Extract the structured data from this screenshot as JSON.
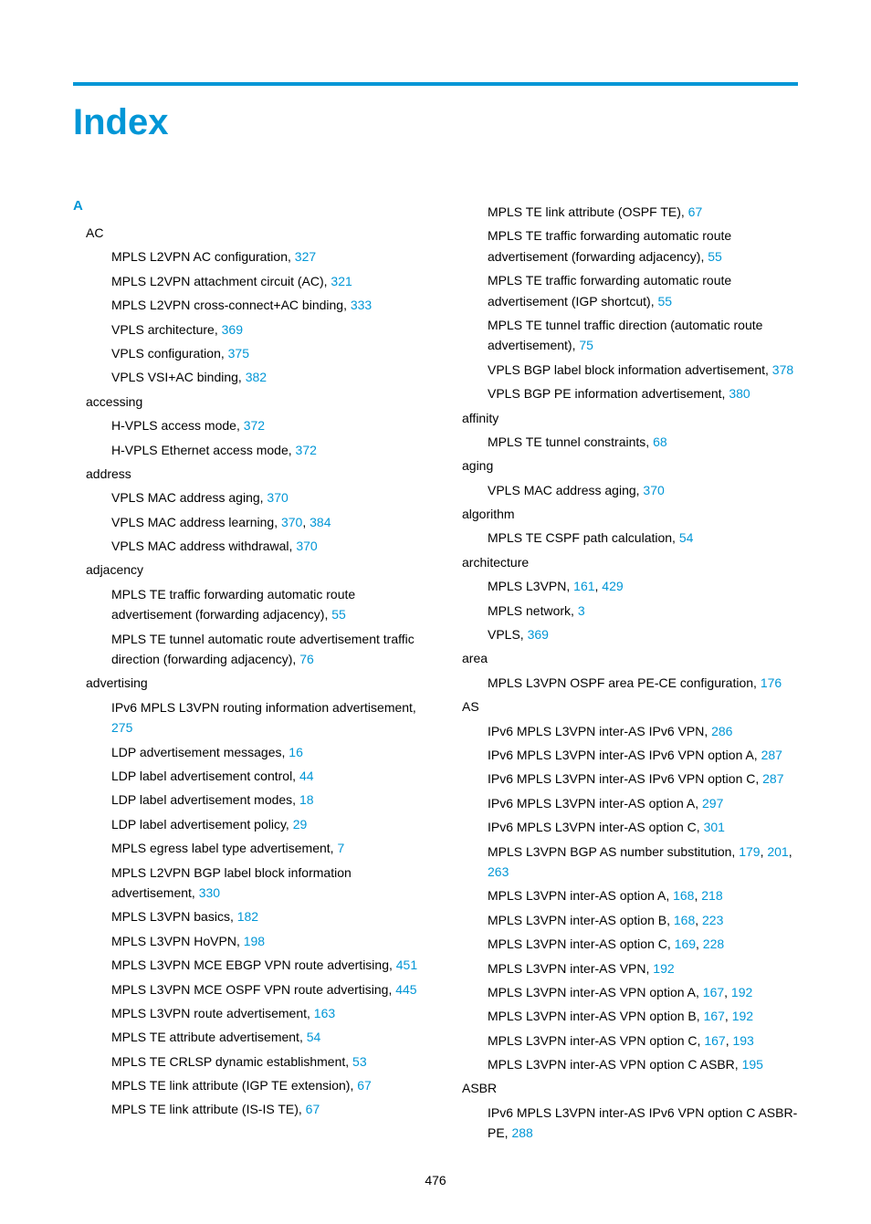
{
  "title": "Index",
  "section_letter": "A",
  "page_number": "476",
  "link_color": "#0096d6",
  "text_color": "#000000",
  "col1": [
    {
      "type": "term",
      "text": "AC"
    },
    {
      "type": "entry",
      "parts": [
        {
          "t": "MPLS L2VPN AC configuration, "
        },
        {
          "p": "327"
        }
      ]
    },
    {
      "type": "entry",
      "parts": [
        {
          "t": "MPLS L2VPN attachment circuit (AC), "
        },
        {
          "p": "321"
        }
      ]
    },
    {
      "type": "entry",
      "parts": [
        {
          "t": "MPLS L2VPN cross-connect+AC binding, "
        },
        {
          "p": "333"
        }
      ]
    },
    {
      "type": "entry",
      "parts": [
        {
          "t": "VPLS architecture, "
        },
        {
          "p": "369"
        }
      ]
    },
    {
      "type": "entry",
      "parts": [
        {
          "t": "VPLS configuration, "
        },
        {
          "p": "375"
        }
      ]
    },
    {
      "type": "entry",
      "parts": [
        {
          "t": "VPLS VSI+AC binding, "
        },
        {
          "p": "382"
        }
      ]
    },
    {
      "type": "term",
      "text": "accessing"
    },
    {
      "type": "entry",
      "parts": [
        {
          "t": "H-VPLS access mode, "
        },
        {
          "p": "372"
        }
      ]
    },
    {
      "type": "entry",
      "parts": [
        {
          "t": "H-VPLS Ethernet access mode, "
        },
        {
          "p": "372"
        }
      ]
    },
    {
      "type": "term",
      "text": "address"
    },
    {
      "type": "entry",
      "parts": [
        {
          "t": "VPLS MAC address aging, "
        },
        {
          "p": "370"
        }
      ]
    },
    {
      "type": "entry",
      "parts": [
        {
          "t": "VPLS MAC address learning, "
        },
        {
          "p": "370"
        },
        {
          "t": ", "
        },
        {
          "p": "384"
        }
      ]
    },
    {
      "type": "entry",
      "parts": [
        {
          "t": "VPLS MAC address withdrawal, "
        },
        {
          "p": "370"
        }
      ]
    },
    {
      "type": "term",
      "text": "adjacency"
    },
    {
      "type": "entry",
      "parts": [
        {
          "t": "MPLS TE traffic forwarding automatic route advertisement (forwarding adjacency), "
        },
        {
          "p": "55"
        }
      ]
    },
    {
      "type": "entry",
      "parts": [
        {
          "t": "MPLS TE tunnel automatic route advertisement traffic direction (forwarding adjacency), "
        },
        {
          "p": "76"
        }
      ]
    },
    {
      "type": "term",
      "text": "advertising"
    },
    {
      "type": "entry",
      "parts": [
        {
          "t": "IPv6 MPLS L3VPN routing information advertisement, "
        },
        {
          "p": "275"
        }
      ]
    },
    {
      "type": "entry",
      "parts": [
        {
          "t": "LDP advertisement messages, "
        },
        {
          "p": "16"
        }
      ]
    },
    {
      "type": "entry",
      "parts": [
        {
          "t": "LDP label advertisement control, "
        },
        {
          "p": "44"
        }
      ]
    },
    {
      "type": "entry",
      "parts": [
        {
          "t": "LDP label advertisement modes, "
        },
        {
          "p": "18"
        }
      ]
    },
    {
      "type": "entry",
      "parts": [
        {
          "t": "LDP label advertisement policy, "
        },
        {
          "p": "29"
        }
      ]
    },
    {
      "type": "entry",
      "parts": [
        {
          "t": "MPLS egress label type advertisement, "
        },
        {
          "p": "7"
        }
      ]
    },
    {
      "type": "entry",
      "parts": [
        {
          "t": "MPLS L2VPN BGP label block information advertisement, "
        },
        {
          "p": "330"
        }
      ]
    },
    {
      "type": "entry",
      "parts": [
        {
          "t": "MPLS L3VPN basics, "
        },
        {
          "p": "182"
        }
      ]
    },
    {
      "type": "entry",
      "parts": [
        {
          "t": "MPLS L3VPN HoVPN, "
        },
        {
          "p": "198"
        }
      ]
    },
    {
      "type": "entry",
      "parts": [
        {
          "t": "MPLS L3VPN MCE EBGP VPN route advertising, "
        },
        {
          "p": "451"
        }
      ]
    },
    {
      "type": "entry",
      "parts": [
        {
          "t": "MPLS L3VPN MCE OSPF VPN route advertising, "
        },
        {
          "p": "445"
        }
      ]
    },
    {
      "type": "entry",
      "parts": [
        {
          "t": "MPLS L3VPN route advertisement, "
        },
        {
          "p": "163"
        }
      ]
    },
    {
      "type": "entry",
      "parts": [
        {
          "t": "MPLS TE attribute advertisement, "
        },
        {
          "p": "54"
        }
      ]
    },
    {
      "type": "entry",
      "parts": [
        {
          "t": "MPLS TE CRLSP dynamic establishment, "
        },
        {
          "p": "53"
        }
      ]
    },
    {
      "type": "entry",
      "parts": [
        {
          "t": "MPLS TE link attribute (IGP TE extension), "
        },
        {
          "p": "67"
        }
      ]
    },
    {
      "type": "entry",
      "parts": [
        {
          "t": "MPLS TE link attribute (IS-IS TE), "
        },
        {
          "p": "67"
        }
      ]
    }
  ],
  "col2": [
    {
      "type": "entry",
      "parts": [
        {
          "t": "MPLS TE link attribute (OSPF TE), "
        },
        {
          "p": "67"
        }
      ]
    },
    {
      "type": "entry",
      "parts": [
        {
          "t": "MPLS TE traffic forwarding automatic route advertisement (forwarding adjacency), "
        },
        {
          "p": "55"
        }
      ]
    },
    {
      "type": "entry",
      "parts": [
        {
          "t": "MPLS TE traffic forwarding automatic route advertisement (IGP shortcut), "
        },
        {
          "p": "55"
        }
      ]
    },
    {
      "type": "entry",
      "parts": [
        {
          "t": "MPLS TE tunnel traffic direction (automatic route advertisement), "
        },
        {
          "p": "75"
        }
      ]
    },
    {
      "type": "entry",
      "parts": [
        {
          "t": "VPLS BGP label block information advertisement, "
        },
        {
          "p": "378"
        }
      ]
    },
    {
      "type": "entry",
      "parts": [
        {
          "t": "VPLS BGP PE information advertisement, "
        },
        {
          "p": "380"
        }
      ]
    },
    {
      "type": "term",
      "text": "affinity"
    },
    {
      "type": "entry",
      "parts": [
        {
          "t": "MPLS TE tunnel constraints, "
        },
        {
          "p": "68"
        }
      ]
    },
    {
      "type": "term",
      "text": "aging"
    },
    {
      "type": "entry",
      "parts": [
        {
          "t": "VPLS MAC address aging, "
        },
        {
          "p": "370"
        }
      ]
    },
    {
      "type": "term",
      "text": "algorithm"
    },
    {
      "type": "entry",
      "parts": [
        {
          "t": "MPLS TE CSPF path calculation, "
        },
        {
          "p": "54"
        }
      ]
    },
    {
      "type": "term",
      "text": "architecture"
    },
    {
      "type": "entry",
      "parts": [
        {
          "t": "MPLS L3VPN, "
        },
        {
          "p": "161"
        },
        {
          "t": ", "
        },
        {
          "p": "429"
        }
      ]
    },
    {
      "type": "entry",
      "parts": [
        {
          "t": "MPLS network, "
        },
        {
          "p": "3"
        }
      ]
    },
    {
      "type": "entry",
      "parts": [
        {
          "t": "VPLS, "
        },
        {
          "p": "369"
        }
      ]
    },
    {
      "type": "term",
      "text": "area"
    },
    {
      "type": "entry",
      "parts": [
        {
          "t": "MPLS L3VPN OSPF area PE-CE configuration, "
        },
        {
          "p": "176"
        }
      ]
    },
    {
      "type": "term",
      "text": "AS"
    },
    {
      "type": "entry",
      "parts": [
        {
          "t": "IPv6 MPLS L3VPN inter-AS IPv6 VPN, "
        },
        {
          "p": "286"
        }
      ]
    },
    {
      "type": "entry",
      "parts": [
        {
          "t": "IPv6 MPLS L3VPN inter-AS IPv6 VPN option A, "
        },
        {
          "p": "287"
        }
      ]
    },
    {
      "type": "entry",
      "parts": [
        {
          "t": "IPv6 MPLS L3VPN inter-AS IPv6 VPN option C, "
        },
        {
          "p": "287"
        }
      ]
    },
    {
      "type": "entry",
      "parts": [
        {
          "t": "IPv6 MPLS L3VPN inter-AS option A, "
        },
        {
          "p": "297"
        }
      ]
    },
    {
      "type": "entry",
      "parts": [
        {
          "t": "IPv6 MPLS L3VPN inter-AS option C, "
        },
        {
          "p": "301"
        }
      ]
    },
    {
      "type": "entry",
      "parts": [
        {
          "t": "MPLS L3VPN BGP AS number substitution, "
        },
        {
          "p": "179"
        },
        {
          "t": ", "
        },
        {
          "p": "201"
        },
        {
          "t": ", "
        },
        {
          "p": "263"
        }
      ]
    },
    {
      "type": "entry",
      "parts": [
        {
          "t": "MPLS L3VPN inter-AS option A, "
        },
        {
          "p": "168"
        },
        {
          "t": ", "
        },
        {
          "p": "218"
        }
      ]
    },
    {
      "type": "entry",
      "parts": [
        {
          "t": "MPLS L3VPN inter-AS option B, "
        },
        {
          "p": "168"
        },
        {
          "t": ", "
        },
        {
          "p": "223"
        }
      ]
    },
    {
      "type": "entry",
      "parts": [
        {
          "t": "MPLS L3VPN inter-AS option C, "
        },
        {
          "p": "169"
        },
        {
          "t": ", "
        },
        {
          "p": "228"
        }
      ]
    },
    {
      "type": "entry",
      "parts": [
        {
          "t": "MPLS L3VPN inter-AS VPN, "
        },
        {
          "p": "192"
        }
      ]
    },
    {
      "type": "entry",
      "parts": [
        {
          "t": "MPLS L3VPN inter-AS VPN option A, "
        },
        {
          "p": "167"
        },
        {
          "t": ", "
        },
        {
          "p": "192"
        }
      ]
    },
    {
      "type": "entry",
      "parts": [
        {
          "t": "MPLS L3VPN inter-AS VPN option B, "
        },
        {
          "p": "167"
        },
        {
          "t": ", "
        },
        {
          "p": "192"
        }
      ]
    },
    {
      "type": "entry",
      "parts": [
        {
          "t": "MPLS L3VPN inter-AS VPN option C, "
        },
        {
          "p": "167"
        },
        {
          "t": ", "
        },
        {
          "p": "193"
        }
      ]
    },
    {
      "type": "entry",
      "parts": [
        {
          "t": "MPLS L3VPN inter-AS VPN option C ASBR, "
        },
        {
          "p": "195"
        }
      ]
    },
    {
      "type": "term",
      "text": "ASBR"
    },
    {
      "type": "entry",
      "parts": [
        {
          "t": "IPv6 MPLS L3VPN inter-AS IPv6 VPN option C ASBR-PE, "
        },
        {
          "p": "288"
        }
      ]
    }
  ]
}
